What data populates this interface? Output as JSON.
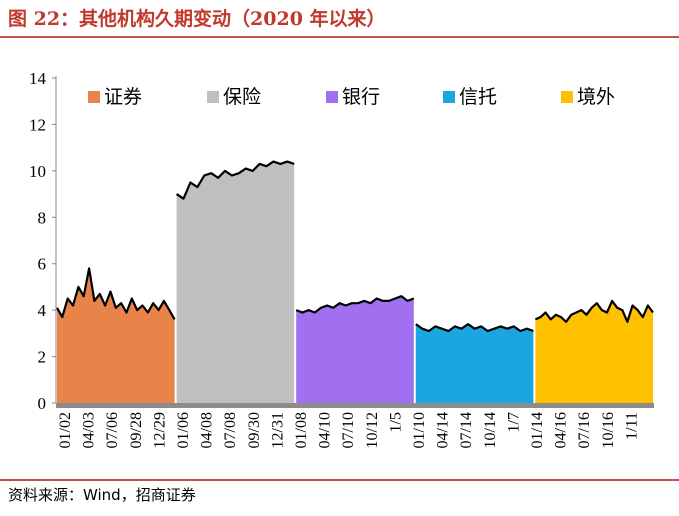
{
  "title": "图 22：其他机构久期变动（2020 年以来）",
  "source": "资料来源：Wind，招商证券",
  "chart_data": {
    "type": "area",
    "ylim": [
      0,
      14
    ],
    "yticks": [
      "0",
      "2",
      "4",
      "6",
      "8",
      "10",
      "12",
      "14"
    ],
    "grid": false,
    "legend_position": "top",
    "legend": [
      {
        "name": "证券",
        "color": "#E8834A"
      },
      {
        "name": "保险",
        "color": "#BFBFBF"
      },
      {
        "name": "银行",
        "color": "#A070F0"
      },
      {
        "name": "信托",
        "color": "#1BA6E0"
      },
      {
        "name": "境外",
        "color": "#FFC000"
      }
    ],
    "xticks": [
      "01/02",
      "04/03",
      "07/06",
      "09/28",
      "12/29",
      "01/06",
      "04/08",
      "07/08",
      "09/30",
      "12/31",
      "01/08",
      "04/10",
      "07/10",
      "10/12",
      "1/5",
      "01/10",
      "04/14",
      "07/14",
      "10/14",
      "1/7",
      "01/14",
      "04/16",
      "07/16",
      "10/16",
      "1/11"
    ],
    "series": [
      {
        "name": "证券",
        "color": "#E8834A",
        "values": [
          4.1,
          3.7,
          4.5,
          4.2,
          5.0,
          4.6,
          5.8,
          4.4,
          4.7,
          4.2,
          4.8,
          4.1,
          4.3,
          3.9,
          4.5,
          4.0,
          4.2,
          3.9,
          4.3,
          4.0,
          4.4,
          4.0,
          3.6
        ]
      },
      {
        "name": "保险",
        "color": "#BFBFBF",
        "values": [
          9.0,
          8.8,
          9.5,
          9.3,
          9.8,
          9.9,
          9.7,
          10.0,
          9.8,
          9.9,
          10.1,
          10.0,
          10.3,
          10.2,
          10.4,
          10.3,
          10.4,
          10.3
        ]
      },
      {
        "name": "银行",
        "color": "#A070F0",
        "values": [
          4.0,
          3.9,
          4.0,
          3.9,
          4.1,
          4.2,
          4.1,
          4.3,
          4.2,
          4.3,
          4.3,
          4.4,
          4.3,
          4.5,
          4.4,
          4.4,
          4.5,
          4.6,
          4.4,
          4.5
        ]
      },
      {
        "name": "信托",
        "color": "#1BA6E0",
        "values": [
          3.4,
          3.2,
          3.1,
          3.3,
          3.2,
          3.1,
          3.3,
          3.2,
          3.4,
          3.2,
          3.3,
          3.1,
          3.2,
          3.3,
          3.2,
          3.3,
          3.1,
          3.2,
          3.1
        ]
      },
      {
        "name": "境外",
        "color": "#FFC000",
        "values": [
          3.6,
          3.7,
          3.9,
          3.6,
          3.8,
          3.7,
          3.5,
          3.8,
          3.9,
          4.0,
          3.8,
          4.1,
          4.3,
          4.0,
          3.9,
          4.4,
          4.1,
          4.0,
          3.5,
          4.2,
          4.0,
          3.7,
          4.2,
          3.9
        ]
      }
    ]
  }
}
